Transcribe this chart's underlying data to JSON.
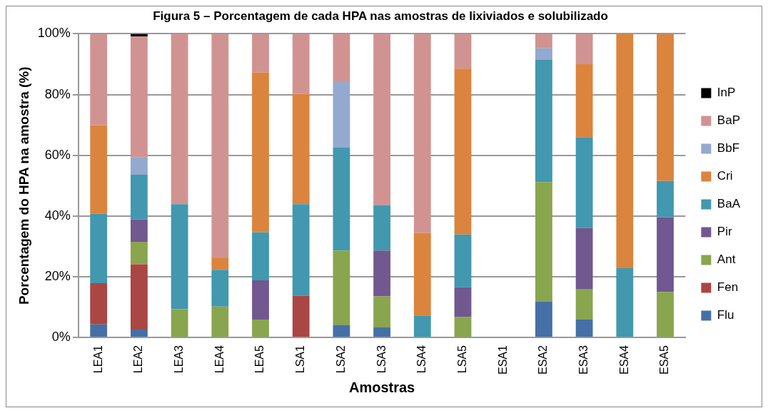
{
  "chart_data": {
    "type": "bar",
    "stacked": true,
    "title": "Figura 5 – Porcentagem de cada HPA nas amostras de lixiviados e solubilizado",
    "xlabel": "Amostras",
    "ylabel": "Porcentagem do HPA na amostra (%)",
    "categories": [
      "LEA1",
      "LEA2",
      "LEA3",
      "LEA4",
      "LEA5",
      "LSA1",
      "LSA2",
      "LSA3",
      "LSA4",
      "LSA5",
      "ESA1",
      "ESA2",
      "ESA3",
      "ESA4",
      "ESA5"
    ],
    "ylim": [
      0,
      100
    ],
    "yticks": [
      {
        "value": 0,
        "label": "0%"
      },
      {
        "value": 20,
        "label": "20%"
      },
      {
        "value": 40,
        "label": "40%"
      },
      {
        "value": 60,
        "label": "60%"
      },
      {
        "value": 80,
        "label": "80%"
      },
      {
        "value": 100,
        "label": "100%"
      }
    ],
    "grid": "y",
    "legend": "right",
    "series": [
      {
        "name": "Flu",
        "color": "#4470a6",
        "values": [
          4.3,
          2.6,
          null,
          null,
          null,
          null,
          4.1,
          3.3,
          null,
          null,
          null,
          11.9,
          5.9,
          null,
          null
        ]
      },
      {
        "name": "Fen",
        "color": "#aa4643",
        "values": [
          13.6,
          21.5,
          null,
          null,
          null,
          13.7,
          null,
          null,
          null,
          null,
          null,
          null,
          null,
          null,
          null
        ]
      },
      {
        "name": "Ant",
        "color": "#89a54e",
        "values": [
          null,
          7.4,
          9.3,
          10.2,
          5.9,
          null,
          24.5,
          10.2,
          null,
          6.8,
          null,
          39.3,
          9.9,
          null,
          15.0
        ]
      },
      {
        "name": "Pir",
        "color": "#71588f",
        "values": [
          null,
          7.4,
          null,
          null,
          12.9,
          null,
          null,
          15.1,
          null,
          9.7,
          null,
          null,
          20.2,
          null,
          24.6
        ]
      },
      {
        "name": "BaA",
        "color": "#4198af",
        "values": [
          22.9,
          14.7,
          34.6,
          12.1,
          15.8,
          30.2,
          34.0,
          15.0,
          7.2,
          17.4,
          null,
          40.3,
          30.0,
          22.8,
          11.9
        ]
      },
      {
        "name": "Cri",
        "color": "#db843d",
        "values": [
          29.1,
          null,
          null,
          4.0,
          52.7,
          36.3,
          null,
          null,
          27.2,
          54.6,
          null,
          null,
          24.0,
          77.2,
          48.5
        ]
      },
      {
        "name": "BbF",
        "color": "#93a9cf",
        "values": [
          null,
          5.7,
          null,
          null,
          null,
          null,
          21.5,
          null,
          null,
          null,
          null,
          3.7,
          null,
          null,
          null
        ]
      },
      {
        "name": "BaP",
        "color": "#d19392",
        "values": [
          30.1,
          39.8,
          56.1,
          73.7,
          12.7,
          19.8,
          15.9,
          56.4,
          65.6,
          11.5,
          null,
          4.8,
          10.0,
          null,
          null
        ]
      },
      {
        "name": "InP",
        "color": "#000000",
        "values": [
          null,
          0.9,
          null,
          null,
          null,
          null,
          null,
          null,
          null,
          null,
          null,
          null,
          null,
          null,
          null
        ]
      }
    ]
  }
}
